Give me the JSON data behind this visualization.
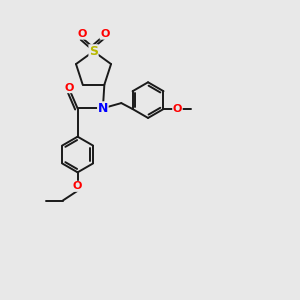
{
  "bg_color": "#e8e8e8",
  "bond_color": "#1a1a1a",
  "S_color": "#b8b800",
  "O_color": "#ff0000",
  "N_color": "#0000ff",
  "bond_width": 1.4,
  "font_size": 8,
  "fig_size": [
    3.0,
    3.0
  ],
  "dpi": 100,
  "xlim": [
    0,
    10
  ],
  "ylim": [
    0,
    10
  ]
}
